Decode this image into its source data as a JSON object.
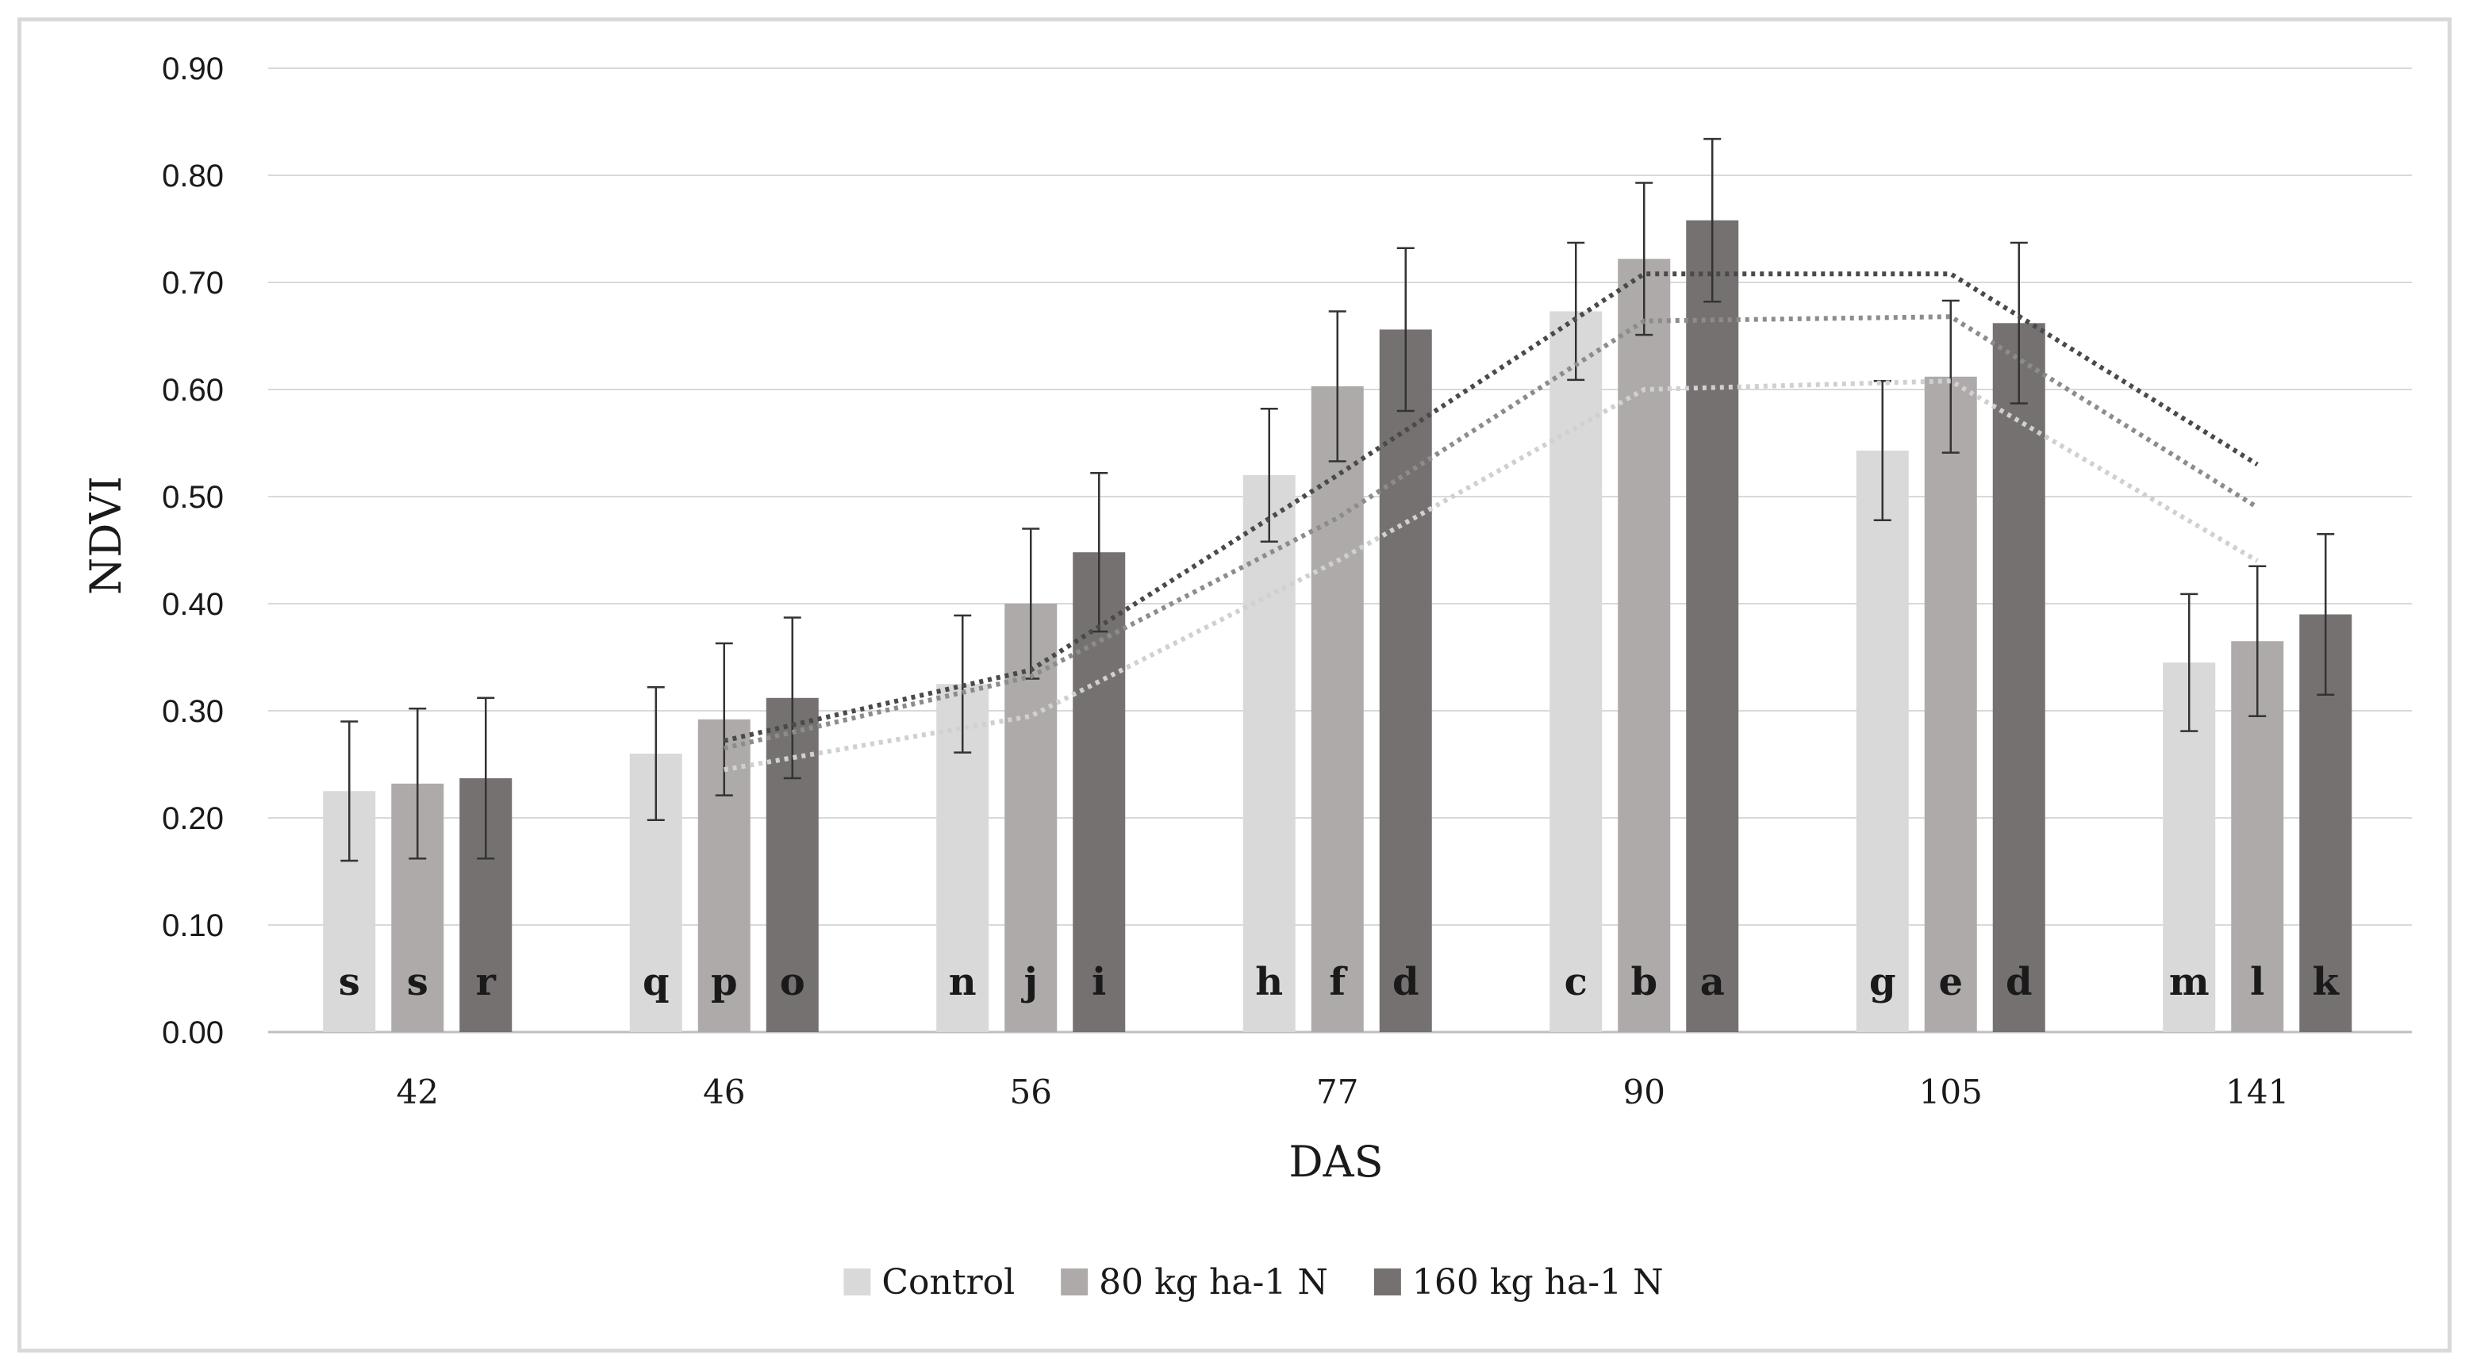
{
  "chart_data": {
    "type": "bar",
    "title": "",
    "xlabel": "DAS",
    "ylabel": "NDVI",
    "ylim": [
      0,
      0.9
    ],
    "ytick_step": 0.1,
    "grid": true,
    "legend_position": "bottom",
    "categories": [
      "42",
      "46",
      "56",
      "77",
      "90",
      "105",
      "141"
    ],
    "series": [
      {
        "name": "Control",
        "color": "#d9d9d9",
        "values": [
          0.225,
          0.26,
          0.325,
          0.52,
          0.673,
          0.543,
          0.345
        ],
        "errors": [
          0.065,
          0.062,
          0.064,
          0.062,
          0.064,
          0.065,
          0.064
        ],
        "letters": [
          "s",
          "q",
          "n",
          "h",
          "c",
          "g",
          "m"
        ],
        "trend": [
          null,
          0.245,
          0.295,
          0.44,
          0.6,
          0.608,
          0.44
        ],
        "trend_color": "#d0d0d0"
      },
      {
        "name": "80 kg ha-1 N",
        "color": "#aeaaaa",
        "values": [
          0.232,
          0.292,
          0.4,
          0.603,
          0.722,
          0.612,
          0.365
        ],
        "errors": [
          0.07,
          0.071,
          0.07,
          0.07,
          0.071,
          0.071,
          0.07
        ],
        "letters": [
          "s",
          "p",
          "j",
          "f",
          "b",
          "e",
          "l"
        ],
        "trend": [
          null,
          0.265,
          0.332,
          0.48,
          0.664,
          0.668,
          0.49
        ],
        "trend_color": "#8c8c8c"
      },
      {
        "name": "160 kg ha-1 N",
        "color": "#767171",
        "values": [
          0.237,
          0.312,
          0.448,
          0.656,
          0.758,
          0.662,
          0.39
        ],
        "errors": [
          0.075,
          0.075,
          0.074,
          0.076,
          0.076,
          0.075,
          0.075
        ],
        "letters": [
          "r",
          "o",
          "i",
          "d",
          "a",
          "d",
          "k"
        ],
        "trend": [
          null,
          0.272,
          0.338,
          0.52,
          0.708,
          0.708,
          0.53
        ],
        "trend_color": "#4a4a4a"
      }
    ]
  }
}
